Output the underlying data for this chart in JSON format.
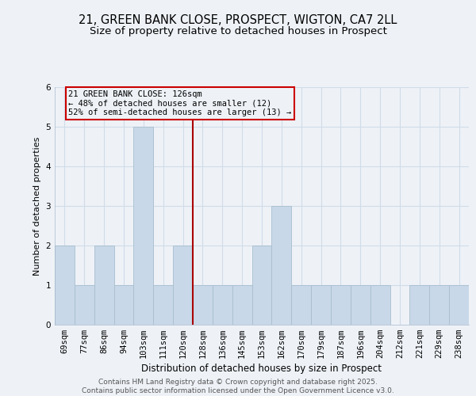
{
  "title": "21, GREEN BANK CLOSE, PROSPECT, WIGTON, CA7 2LL",
  "subtitle": "Size of property relative to detached houses in Prospect",
  "xlabel": "Distribution of detached houses by size in Prospect",
  "ylabel": "Number of detached properties",
  "bar_labels": [
    "69sqm",
    "77sqm",
    "86sqm",
    "94sqm",
    "103sqm",
    "111sqm",
    "120sqm",
    "128sqm",
    "136sqm",
    "145sqm",
    "153sqm",
    "162sqm",
    "170sqm",
    "179sqm",
    "187sqm",
    "196sqm",
    "204sqm",
    "212sqm",
    "221sqm",
    "229sqm",
    "238sqm"
  ],
  "bar_values": [
    2,
    1,
    2,
    1,
    5,
    1,
    2,
    1,
    1,
    1,
    2,
    3,
    1,
    1,
    1,
    1,
    1,
    0,
    1,
    1,
    1
  ],
  "bar_color": "#c8d8e8",
  "bar_edge_color": "#a8bece",
  "grid_color": "#d0dce8",
  "background_color": "#eef2f7",
  "annotation_line_color": "#aa0000",
  "annotation_box_text_line1": "21 GREEN BANK CLOSE: 126sqm",
  "annotation_box_text_line2": "← 48% of detached houses are smaller (12)",
  "annotation_box_text_line3": "52% of semi-detached houses are larger (13) →",
  "ylim": [
    0,
    6
  ],
  "yticks": [
    0,
    1,
    2,
    3,
    4,
    5,
    6
  ],
  "footer_line1": "Contains HM Land Registry data © Crown copyright and database right 2025.",
  "footer_line2": "Contains public sector information licensed under the Open Government Licence v3.0.",
  "title_fontsize": 10.5,
  "subtitle_fontsize": 9.5,
  "xlabel_fontsize": 8.5,
  "ylabel_fontsize": 8,
  "tick_fontsize": 7.5,
  "annot_fontsize": 7.5,
  "footer_fontsize": 6.5
}
